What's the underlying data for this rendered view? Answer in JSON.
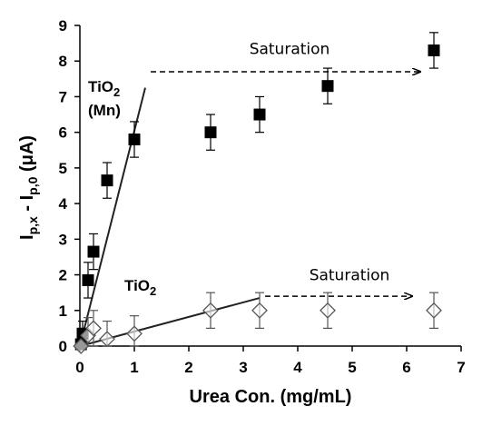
{
  "chart_data": {
    "type": "scatter",
    "xlabel": "Urea Con. (mg/mL)",
    "ylabel": "I_p,x - I_p,0 (μA)",
    "ylabel_parts": {
      "main1": "I",
      "sub1": "p,x",
      "mid": " - I",
      "sub2": "p,0",
      "end": " (μA)"
    },
    "xlim": [
      0,
      7
    ],
    "ylim": [
      0,
      9
    ],
    "xticks": [
      0,
      1,
      2,
      3,
      4,
      5,
      6,
      7
    ],
    "yticks": [
      0,
      1,
      2,
      3,
      4,
      5,
      6,
      7,
      8,
      9
    ],
    "grid": false,
    "series": [
      {
        "name": "TiO2 (Mn)",
        "label_parts": {
          "main": "TiO",
          "sub": "2",
          "line2": "(Mn)"
        },
        "marker": "filled-square",
        "color": "#000000",
        "x": [
          0.02,
          0.05,
          0.15,
          0.25,
          0.5,
          1.0,
          2.4,
          3.3,
          4.55,
          6.5
        ],
        "y": [
          0.05,
          0.35,
          1.85,
          2.65,
          4.65,
          5.8,
          6.0,
          6.5,
          7.3,
          8.3
        ],
        "error": [
          0.1,
          0.35,
          0.5,
          0.5,
          0.5,
          0.5,
          0.5,
          0.5,
          0.5,
          0.5
        ]
      },
      {
        "name": "TiO2",
        "label_parts": {
          "main": "TiO",
          "sub": "2"
        },
        "marker": "open-diamond",
        "color": "#555555",
        "x": [
          0.02,
          0.15,
          0.25,
          0.5,
          1.0,
          2.4,
          3.3,
          4.55,
          6.5
        ],
        "y": [
          0.0,
          0.3,
          0.5,
          0.2,
          0.35,
          1.0,
          1.0,
          1.0,
          1.0
        ],
        "error": [
          0.1,
          0.5,
          0.5,
          0.5,
          0.5,
          0.5,
          0.5,
          0.5,
          0.5
        ]
      }
    ],
    "fit_lines": [
      {
        "x": [
          0,
          1.2
        ],
        "y": [
          0,
          7.25
        ]
      },
      {
        "x": [
          0,
          3.3
        ],
        "y": [
          0,
          1.35
        ]
      }
    ],
    "annotations": [
      {
        "text": "Saturation",
        "x": 3.85,
        "y": 8.2,
        "arrow_from": [
          1.3,
          7.7
        ],
        "arrow_to": [
          6.25,
          7.7
        ]
      },
      {
        "text": "Saturation",
        "x": 4.95,
        "y": 1.85,
        "arrow_from": [
          3.4,
          1.4
        ],
        "arrow_to": [
          6.1,
          1.4
        ]
      }
    ]
  }
}
